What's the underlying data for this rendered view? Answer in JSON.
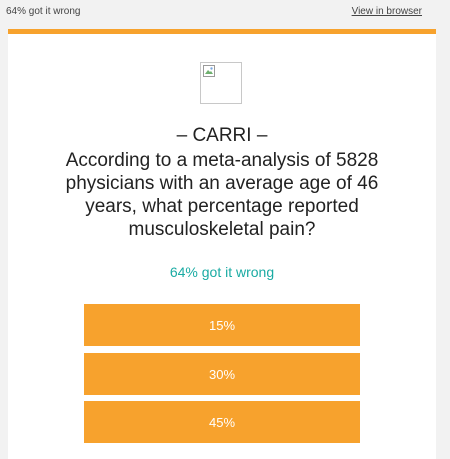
{
  "header": {
    "preheader": "64% got it wrong",
    "view_in_browser": "View in browser"
  },
  "colors": {
    "accent": "#f7a22d",
    "stat_teal": "#1aaba3",
    "background": "#f2f2f2"
  },
  "logo": {
    "icon": "broken-image-icon"
  },
  "content": {
    "title": "– CARRI –",
    "question": "According to a meta-analysis of 5828 physicians with an average age of 46 years, what percentage reported musculoskeletal pain?",
    "stat": "64% got it wrong"
  },
  "answers": [
    {
      "label": "15%"
    },
    {
      "label": "30%"
    },
    {
      "label": "45%"
    }
  ]
}
